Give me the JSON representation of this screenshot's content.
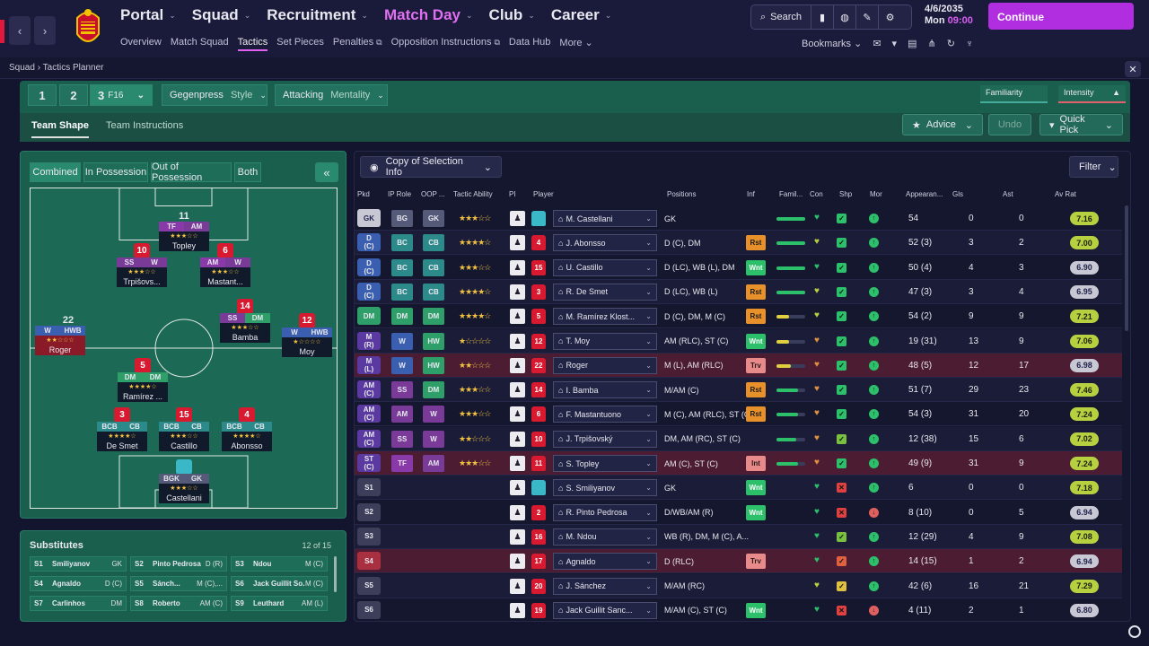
{
  "topnav": {
    "items": [
      {
        "label": "Portal"
      },
      {
        "label": "Squad"
      },
      {
        "label": "Recruitment"
      },
      {
        "label": "Match Day"
      },
      {
        "label": "Club"
      },
      {
        "label": "Career"
      }
    ],
    "subitems": [
      "Overview",
      "Match Squad",
      "Tactics",
      "Set Pieces",
      "Penalties",
      "Opposition Instructions",
      "Data Hub",
      "More"
    ],
    "search": "Search",
    "date": "4/6/2035",
    "day": "Mon",
    "time": "09:00",
    "continue": "Continue",
    "bookmarks": "Bookmarks",
    "badge": "25"
  },
  "breadcrumb": {
    "parent": "Squad",
    "current": "Tactics Planner"
  },
  "tactics": {
    "slot1": "1",
    "slot2": "2",
    "slot3": "3",
    "formation": "F16",
    "style_value": "Gegenpress",
    "style_label": "Style",
    "mentality_value": "Attacking",
    "mentality_label": "Mentality",
    "familiarity": "Familiarity",
    "intensity": "Intensity",
    "tab_shape": "Team Shape",
    "tab_instructions": "Team Instructions",
    "advice": "Advice",
    "undo": "Undo",
    "quickpick": "Quick Pick"
  },
  "pitch": {
    "views": [
      "Combined",
      "In Possession",
      "Out of Possession",
      "Both"
    ]
  },
  "players_on_pitch": [
    {
      "num": "11",
      "r1": "TF",
      "r2": "AM",
      "stars": "★★★☆☆",
      "name": "Topley"
    },
    {
      "num": "10",
      "r1": "SS",
      "r2": "W",
      "stars": "★★★☆☆",
      "name": "Trpišovs..."
    },
    {
      "num": "6",
      "r1": "AM",
      "r2": "W",
      "stars": "★★★☆☆",
      "name": "Mastant..."
    },
    {
      "num": "14",
      "r1": "SS",
      "r2": "DM",
      "stars": "★★★☆☆",
      "name": "Bamba"
    },
    {
      "num": "22",
      "r1": "W",
      "r2": "HWB",
      "stars": "★★☆☆☆",
      "name": "Roger"
    },
    {
      "num": "12",
      "r1": "W",
      "r2": "HWB",
      "stars": "★☆☆☆☆",
      "name": "Moy"
    },
    {
      "num": "5",
      "r1": "DM",
      "r2": "DM",
      "stars": "★★★★☆",
      "name": "Ramírez ..."
    },
    {
      "num": "3",
      "r1": "BCB",
      "r2": "CB",
      "stars": "★★★★☆",
      "name": "De Smet"
    },
    {
      "num": "15",
      "r1": "BCB",
      "r2": "CB",
      "stars": "★★★☆☆",
      "name": "Castillo"
    },
    {
      "num": "4",
      "r1": "BCB",
      "r2": "CB",
      "stars": "★★★★☆",
      "name": "Abonsso"
    },
    {
      "num": "",
      "r1": "BGK",
      "r2": "GK",
      "stars": "★★★☆☆",
      "name": "Castellani"
    }
  ],
  "subs": {
    "title": "Substitutes",
    "count": "12 of 15",
    "items": [
      {
        "s": "S1",
        "n": "Smiliyanov",
        "p": "GK"
      },
      {
        "s": "S2",
        "n": "Pinto Pedrosa",
        "p": "D (R)"
      },
      {
        "s": "S3",
        "n": "Ndou",
        "p": "M (C)"
      },
      {
        "s": "S4",
        "n": "Agnaldo",
        "p": "D (C)"
      },
      {
        "s": "S5",
        "n": "Sánch...",
        "p": "M (C),..."
      },
      {
        "s": "S6",
        "n": "Jack Guillit So...",
        "p": "M (C)"
      },
      {
        "s": "S7",
        "n": "Carlinhos",
        "p": "DM"
      },
      {
        "s": "S8",
        "n": "Roberto",
        "p": "AM (C)"
      },
      {
        "s": "S9",
        "n": "Leuthard",
        "p": "AM (L)"
      }
    ]
  },
  "table": {
    "copy": "Copy of Selection Info",
    "filter": "Filter",
    "headers": [
      "Pkd",
      "IP Role",
      "OOP ...",
      "Tactic Ability",
      "PI",
      "Player",
      "Positions",
      "Inf",
      "Famil...",
      "Con",
      "Shp",
      "Mor",
      "Appearan...",
      "Gls",
      "Ast",
      "Av Rat"
    ],
    "rows": [
      {
        "pk": "GK",
        "ip": "BG",
        "oop": "GK",
        "stars": "★★★☆☆",
        "num": "",
        "name": "M. Castellani",
        "pos": "GK",
        "inf": "",
        "apps": "54",
        "gls": "0",
        "ast": "0",
        "rat": "7.16"
      },
      {
        "pk": "D\n(C)",
        "ip": "BC",
        "oop": "CB",
        "stars": "★★★★☆",
        "num": "4",
        "name": "J. Abonsso",
        "pos": "D (C), DM",
        "inf": "Rst",
        "apps": "52 (3)",
        "gls": "3",
        "ast": "2",
        "rat": "7.00"
      },
      {
        "pk": "D\n(C)",
        "ip": "BC",
        "oop": "CB",
        "stars": "★★★☆☆",
        "num": "15",
        "name": "U. Castillo",
        "pos": "D (LC), WB (L), DM",
        "inf": "Wnt",
        "apps": "50 (4)",
        "gls": "4",
        "ast": "3",
        "rat": "6.90"
      },
      {
        "pk": "D\n(C)",
        "ip": "BC",
        "oop": "CB",
        "stars": "★★★★☆",
        "num": "3",
        "name": "R. De Smet",
        "pos": "D (LC), WB (L)",
        "inf": "Rst",
        "apps": "47 (3)",
        "gls": "3",
        "ast": "4",
        "rat": "6.95"
      },
      {
        "pk": "DM",
        "ip": "DM",
        "oop": "DM",
        "stars": "★★★★☆",
        "num": "5",
        "name": "M. Ramírez Klost...",
        "pos": "D (C), DM, M (C)",
        "inf": "Rst",
        "apps": "54 (2)",
        "gls": "9",
        "ast": "9",
        "rat": "7.21"
      },
      {
        "pk": "M\n(R)",
        "ip": "W",
        "oop": "HW",
        "stars": "★☆☆☆☆",
        "num": "12",
        "name": "T. Moy",
        "pos": "AM (RLC), ST (C)",
        "inf": "Wnt",
        "apps": "19 (31)",
        "gls": "13",
        "ast": "9",
        "rat": "7.06"
      },
      {
        "pk": "M\n(L)",
        "ip": "W",
        "oop": "HW",
        "stars": "★★☆☆☆",
        "num": "22",
        "name": "Roger",
        "pos": "M (L), AM (RLC)",
        "inf": "Trv",
        "apps": "48 (5)",
        "gls": "12",
        "ast": "17",
        "rat": "6.98"
      },
      {
        "pk": "AM\n(C)",
        "ip": "SS",
        "oop": "DM",
        "stars": "★★★☆☆",
        "num": "14",
        "name": "I. Bamba",
        "pos": "M/AM (C)",
        "inf": "Rst",
        "apps": "51 (7)",
        "gls": "29",
        "ast": "23",
        "rat": "7.46"
      },
      {
        "pk": "AM\n(C)",
        "ip": "AM",
        "oop": "W",
        "stars": "★★★☆☆",
        "num": "6",
        "name": "F. Mastantuono",
        "pos": "M (C), AM (RLC), ST (C)",
        "inf": "Rst",
        "apps": "54 (3)",
        "gls": "31",
        "ast": "20",
        "rat": "7.24"
      },
      {
        "pk": "AM\n(C)",
        "ip": "SS",
        "oop": "W",
        "stars": "★★☆☆☆",
        "num": "10",
        "name": "J. Trpišovský",
        "pos": "DM, AM (RC), ST (C)",
        "inf": "",
        "apps": "12 (38)",
        "gls": "15",
        "ast": "6",
        "rat": "7.02"
      },
      {
        "pk": "ST\n(C)",
        "ip": "TF",
        "oop": "AM",
        "stars": "★★★☆☆",
        "num": "11",
        "name": "S. Topley",
        "pos": "AM (C), ST (C)",
        "inf": "Int",
        "apps": "49 (9)",
        "gls": "31",
        "ast": "9",
        "rat": "7.24"
      },
      {
        "pk": "S1",
        "ip": "",
        "oop": "",
        "stars": "",
        "num": "",
        "name": "S. Smiliyanov",
        "pos": "GK",
        "inf": "Wnt",
        "apps": "6",
        "gls": "0",
        "ast": "0",
        "rat": "7.18"
      },
      {
        "pk": "S2",
        "ip": "",
        "oop": "",
        "stars": "",
        "num": "2",
        "name": "R. Pinto Pedrosa",
        "pos": "D/WB/AM (R)",
        "inf": "Wnt",
        "apps": "8 (10)",
        "gls": "0",
        "ast": "5",
        "rat": "6.94"
      },
      {
        "pk": "S3",
        "ip": "",
        "oop": "",
        "stars": "",
        "num": "16",
        "name": "M. Ndou",
        "pos": "WB (R), DM, M (C), A...",
        "inf": "",
        "apps": "12 (29)",
        "gls": "4",
        "ast": "9",
        "rat": "7.08"
      },
      {
        "pk": "S4",
        "ip": "",
        "oop": "",
        "stars": "",
        "num": "17",
        "name": "Agnaldo",
        "pos": "D (RLC)",
        "inf": "Trv",
        "apps": "14 (15)",
        "gls": "1",
        "ast": "2",
        "rat": "6.94"
      },
      {
        "pk": "S5",
        "ip": "",
        "oop": "",
        "stars": "",
        "num": "20",
        "name": "J. Sánchez",
        "pos": "M/AM (RC)",
        "inf": "",
        "apps": "42 (6)",
        "gls": "16",
        "ast": "21",
        "rat": "7.29"
      },
      {
        "pk": "S6",
        "ip": "",
        "oop": "",
        "stars": "",
        "num": "19",
        "name": "Jack Guillit Sanc...",
        "pos": "M/AM (C), ST (C)",
        "inf": "Wnt",
        "apps": "4 (11)",
        "gls": "2",
        "ast": "1",
        "rat": "6.80"
      }
    ]
  }
}
